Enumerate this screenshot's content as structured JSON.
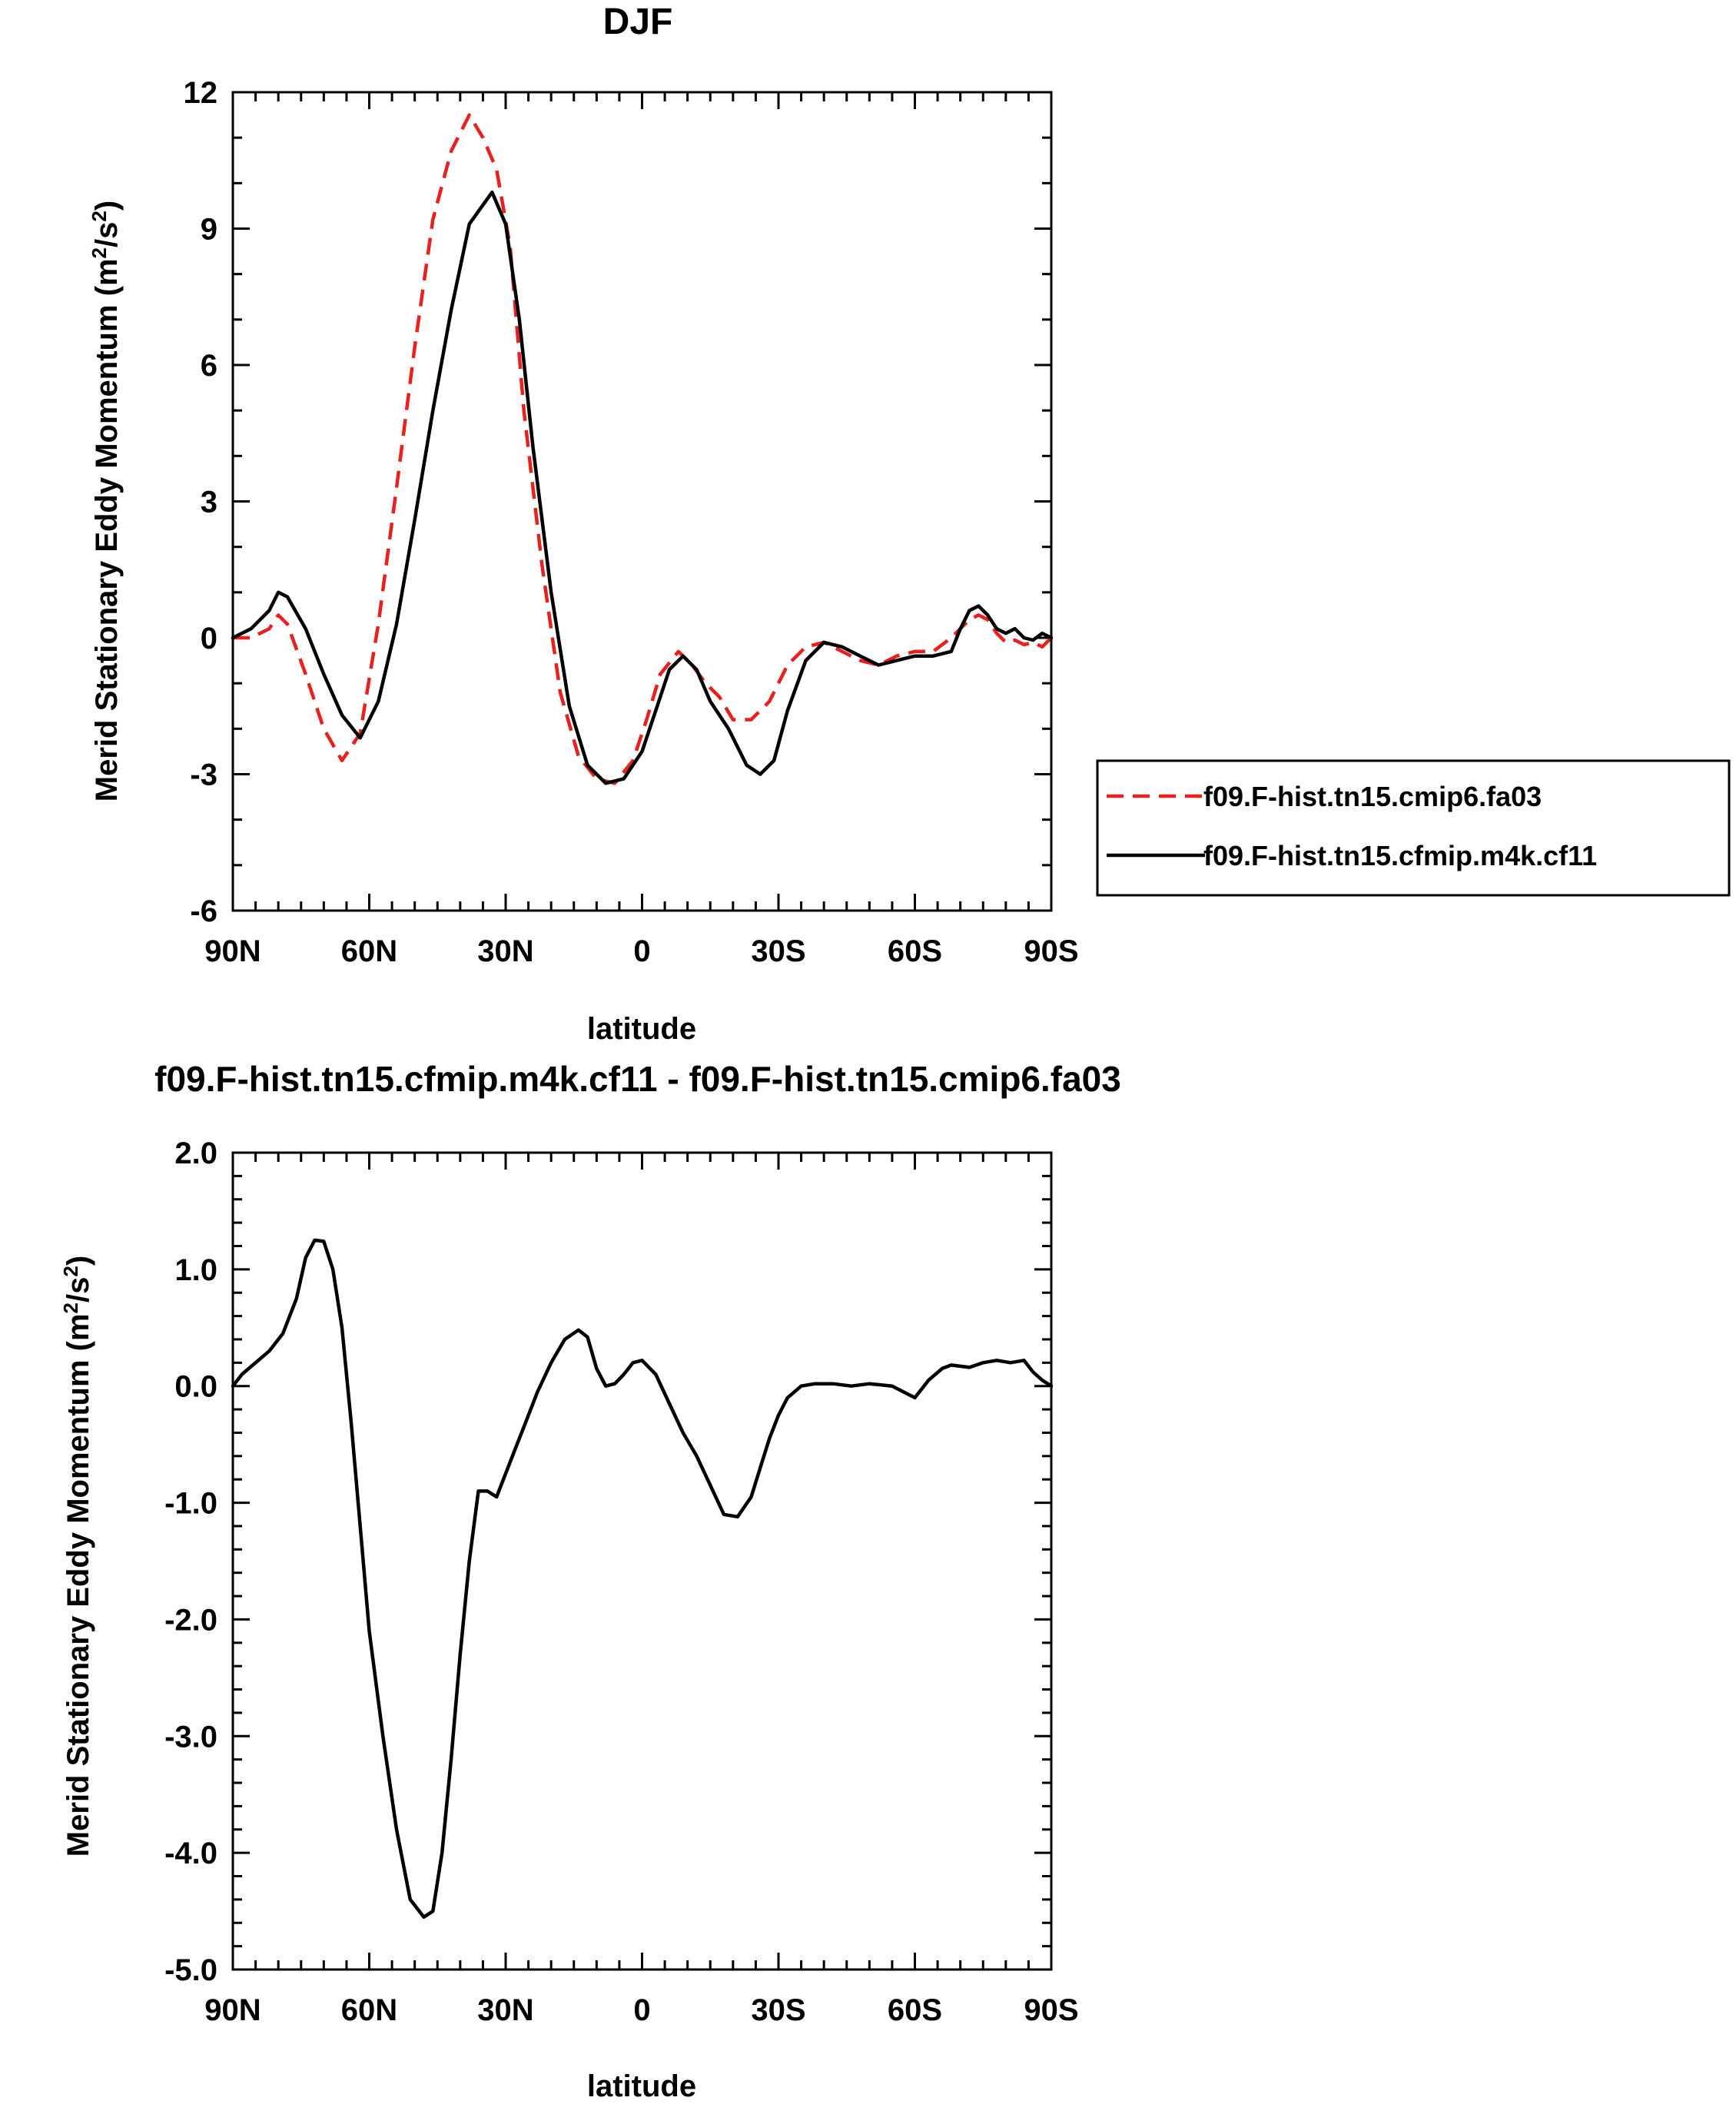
{
  "chart_data": [
    {
      "type": "line",
      "title": "DJF",
      "xlabel": "latitude",
      "ylabel": "Merid Stationary Eddy Momentum (m²/s²)",
      "ylabel_main": "Merid Stationary Eddy Momentum (m",
      "ylabel_units_mid": "/s",
      "ylabel_close": ")",
      "ylabel_sup": "2",
      "xlim": [
        90,
        -90
      ],
      "ylim": [
        -6,
        12
      ],
      "xticks": [
        90,
        60,
        30,
        0,
        -30,
        -60,
        -90
      ],
      "xtick_labels": [
        "90N",
        "60N",
        "30N",
        "0",
        "30S",
        "60S",
        "90S"
      ],
      "yticks": [
        -6,
        -3,
        0,
        3,
        6,
        9,
        12
      ],
      "ytick_labels": [
        "-6",
        "-3",
        "0",
        "3",
        "6",
        "9",
        "12"
      ],
      "legend_position": "right",
      "series": [
        {
          "name": "f09.F-hist.tn15.cmip6.fa03",
          "color": "#e8201e",
          "dash": "dashed",
          "x": [
            90,
            86,
            82,
            80,
            78,
            74,
            70,
            66,
            62,
            58,
            54,
            50,
            46,
            42,
            38,
            35,
            32,
            29,
            26,
            22,
            18,
            14,
            10,
            6,
            2,
            -1,
            -4,
            -8,
            -11,
            -14,
            -17,
            -20,
            -24,
            -28,
            -32,
            -36,
            -40,
            -44,
            -48,
            -52,
            -56,
            -60,
            -64,
            -68,
            -72,
            -74,
            -76,
            -78,
            -80,
            -82,
            -84,
            -86,
            -88,
            -90
          ],
          "y": [
            0.0,
            0.0,
            0.2,
            0.5,
            0.3,
            -0.8,
            -2.0,
            -2.7,
            -2.1,
            0.3,
            3.3,
            6.4,
            9.2,
            10.7,
            11.5,
            11.0,
            10.3,
            8.6,
            5.0,
            1.6,
            -1.2,
            -2.6,
            -3.1,
            -3.2,
            -2.7,
            -1.8,
            -0.8,
            -0.3,
            -0.6,
            -1.0,
            -1.3,
            -1.8,
            -1.8,
            -1.4,
            -0.6,
            -0.2,
            -0.1,
            -0.3,
            -0.5,
            -0.6,
            -0.4,
            -0.3,
            -0.3,
            0.0,
            0.4,
            0.5,
            0.4,
            0.1,
            -0.1,
            -0.05,
            -0.15,
            -0.1,
            -0.2,
            0.0
          ]
        },
        {
          "name": "f09.F-hist.tn15.cfmip.m4k.cf11",
          "color": "#000000",
          "dash": "solid",
          "x": [
            90,
            86,
            82,
            80,
            78,
            74,
            70,
            66,
            62,
            58,
            54,
            50,
            46,
            42,
            38,
            33,
            30,
            27,
            24,
            20,
            16,
            12,
            8,
            4,
            0,
            -3,
            -6,
            -9,
            -12,
            -15,
            -19,
            -23,
            -26,
            -29,
            -32,
            -36,
            -40,
            -44,
            -48,
            -52,
            -56,
            -60,
            -64,
            -68,
            -70,
            -72,
            -74,
            -76,
            -78,
            -80,
            -82,
            -84,
            -86,
            -88,
            -90
          ],
          "y": [
            0.0,
            0.2,
            0.6,
            1.0,
            0.9,
            0.2,
            -0.8,
            -1.7,
            -2.2,
            -1.4,
            0.3,
            2.6,
            5.0,
            7.2,
            9.1,
            9.8,
            9.1,
            7.0,
            4.2,
            1.0,
            -1.5,
            -2.8,
            -3.2,
            -3.1,
            -2.5,
            -1.6,
            -0.7,
            -0.4,
            -0.7,
            -1.4,
            -2.0,
            -2.8,
            -3.0,
            -2.7,
            -1.6,
            -0.5,
            -0.1,
            -0.2,
            -0.4,
            -0.6,
            -0.5,
            -0.4,
            -0.4,
            -0.3,
            0.2,
            0.6,
            0.7,
            0.5,
            0.2,
            0.1,
            0.2,
            0.0,
            -0.05,
            0.1,
            0.0
          ]
        }
      ]
    },
    {
      "type": "line",
      "title": "f09.F-hist.tn15.cfmip.m4k.cf11 - f09.F-hist.tn15.cmip6.fa03",
      "xlabel": "latitude",
      "ylabel": "Merid Stationary Eddy Momentum (m²/s²)",
      "ylabel_main": "Merid Stationary Eddy Momentum (m",
      "ylabel_units_mid": "/s",
      "ylabel_close": ")",
      "ylabel_sup": "2",
      "xlim": [
        90,
        -90
      ],
      "ylim": [
        -5,
        2
      ],
      "xticks": [
        90,
        60,
        30,
        0,
        -30,
        -60,
        -90
      ],
      "xtick_labels": [
        "90N",
        "60N",
        "30N",
        "0",
        "30S",
        "60S",
        "90S"
      ],
      "yticks": [
        -5,
        -4,
        -3,
        -2,
        -1,
        0,
        1,
        2
      ],
      "ytick_labels": [
        "-5.0",
        "-4.0",
        "-3.0",
        "-2.0",
        "-1.0",
        "0.0",
        "1.0",
        "2.0"
      ],
      "series": [
        {
          "color": "#000000",
          "dash": "solid",
          "x": [
            90,
            88,
            85,
            82,
            79,
            76,
            74,
            72,
            70,
            68,
            66,
            64,
            62,
            60,
            57,
            54,
            51,
            48,
            46,
            44,
            42,
            40,
            38,
            36,
            34,
            32,
            30,
            28,
            26,
            23,
            20,
            17,
            14,
            12,
            10,
            8,
            6,
            4,
            2,
            0,
            -3,
            -6,
            -9,
            -12,
            -15,
            -18,
            -21,
            -24,
            -26,
            -28,
            -30,
            -32,
            -35,
            -38,
            -42,
            -46,
            -50,
            -55,
            -60,
            -63,
            -66,
            -68,
            -70,
            -72,
            -75,
            -78,
            -81,
            -84,
            -86,
            -88,
            -90
          ],
          "y": [
            0.0,
            0.1,
            0.2,
            0.3,
            0.45,
            0.75,
            1.1,
            1.25,
            1.24,
            1.0,
            0.5,
            -0.3,
            -1.2,
            -2.1,
            -3.0,
            -3.8,
            -4.4,
            -4.55,
            -4.5,
            -4.0,
            -3.2,
            -2.3,
            -1.5,
            -0.9,
            -0.9,
            -0.95,
            -0.75,
            -0.55,
            -0.35,
            -0.05,
            0.2,
            0.4,
            0.48,
            0.42,
            0.15,
            0.0,
            0.02,
            0.1,
            0.2,
            0.22,
            0.1,
            -0.15,
            -0.4,
            -0.6,
            -0.85,
            -1.1,
            -1.12,
            -0.95,
            -0.7,
            -0.45,
            -0.25,
            -0.1,
            0.0,
            0.02,
            0.02,
            0.0,
            0.02,
            0.0,
            -0.1,
            0.05,
            0.15,
            0.18,
            0.17,
            0.16,
            0.2,
            0.22,
            0.2,
            0.22,
            0.12,
            0.05,
            0.0
          ]
        }
      ]
    }
  ]
}
